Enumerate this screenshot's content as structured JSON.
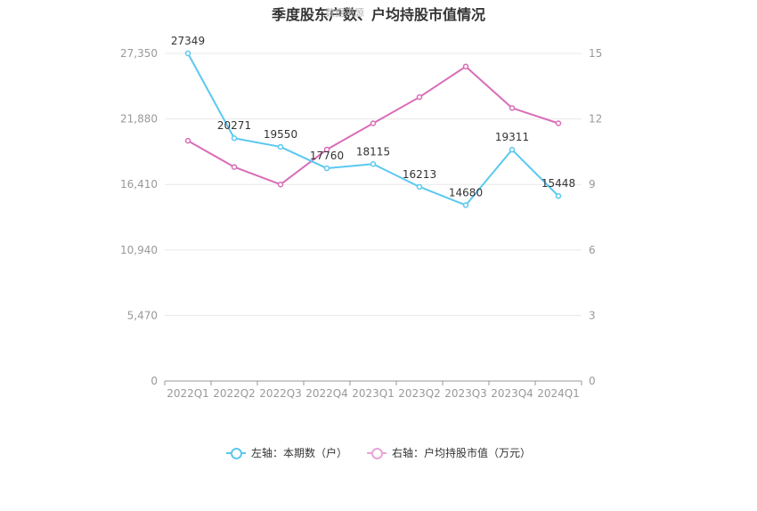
{
  "page": {
    "title": "季度股东户数、户均持股市值情况",
    "watermark": "数据来源"
  },
  "chart_data": {
    "type": "line",
    "title": "季度股东户数、户均持股市值情况",
    "categories": [
      "2022Q1",
      "2022Q2",
      "2022Q3",
      "2022Q4",
      "2023Q1",
      "2023Q2",
      "2023Q3",
      "2023Q4",
      "2024Q1"
    ],
    "left_axis": {
      "ticks": [
        "0",
        "5,470",
        "10,940",
        "16,410",
        "21,880",
        "27,350"
      ],
      "ylim": [
        0,
        27350
      ]
    },
    "right_axis": {
      "ticks": [
        "0",
        "3",
        "6",
        "9",
        "12",
        "15"
      ],
      "ylim": [
        0,
        15
      ]
    },
    "grid": true,
    "legend_position": "bottom",
    "series": [
      {
        "name": "左轴：本期数（户）",
        "axis": "left",
        "color": "#5bc8f0",
        "values": [
          27349,
          20271,
          19550,
          17760,
          18115,
          16213,
          14680,
          19311,
          15448
        ],
        "labels": [
          "27349",
          "20271",
          "19550",
          "17760",
          "18115",
          "16213",
          "14680",
          "19311",
          "15448"
        ]
      },
      {
        "name": "右轴：户均持股市值（万元）",
        "axis": "right",
        "color": "#d96db8",
        "values": [
          11.0,
          9.8,
          9.0,
          10.6,
          11.8,
          13.0,
          14.4,
          12.5,
          11.8
        ]
      }
    ]
  }
}
